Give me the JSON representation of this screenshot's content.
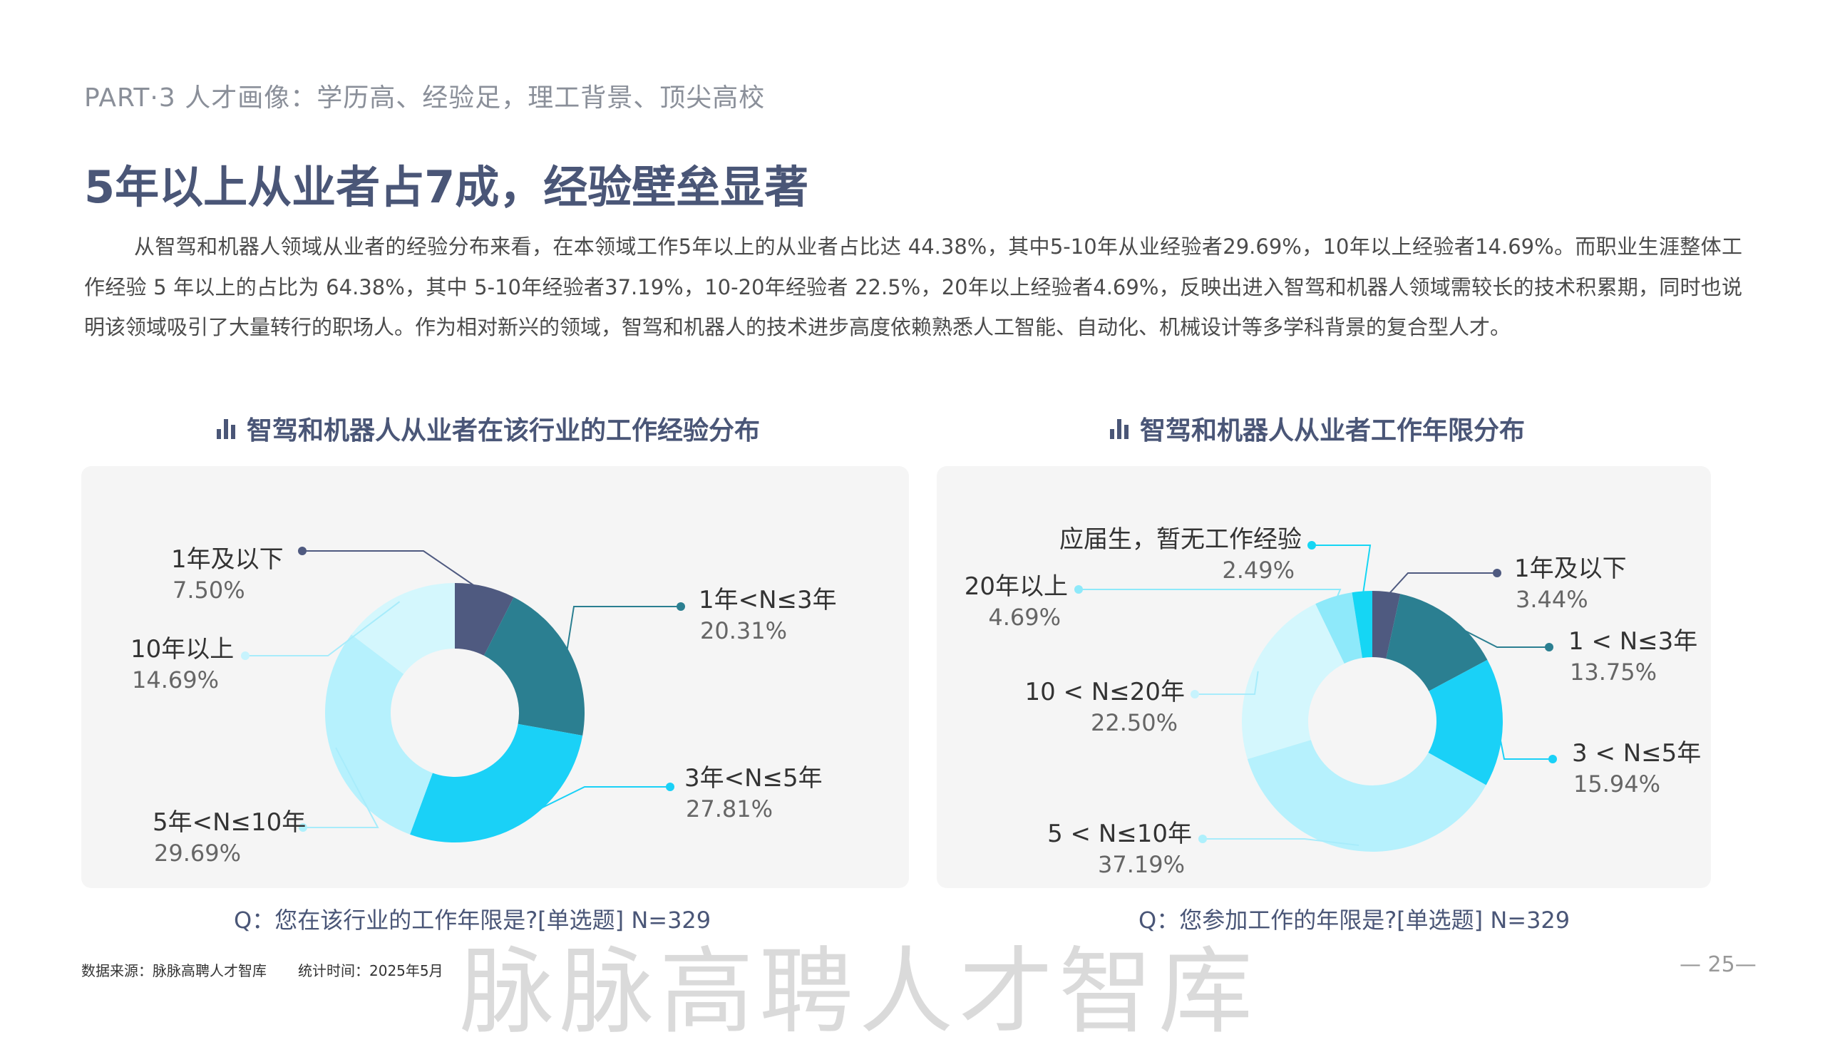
{
  "header": {
    "part_label": "PART·3  人才画像：学历高、经验足，理工背景、顶尖高校",
    "title": "5年以上从业者占7成，经验壁垒显著"
  },
  "body_text": "从智驾和机器人领域从业者的经验分布来看，在本领域工作5年以上的从业者占比达 44.38%，其中5-10年从业经验者29.69%，10年以上经验者14.69%。而职业生涯整体工作经验 5 年以上的占比为 64.38%，其中 5-10年经验者37.19%，10-20年经验者 22.5%，20年以上经验者4.69%，反映出进入智驾和机器人领域需较长的技术积累期，同时也说明该领域吸引了大量转行的职场人。作为相对新兴的领域，智驾和机器人的技术进步高度依赖熟悉人工智能、自动化、机械设计等多学科背景的复合型人才。",
  "chart_data": [
    {
      "type": "pie",
      "donut": true,
      "title": "智驾和机器人从业者在该行业的工作经验分布",
      "question": "Q：您在该行业的工作年限是?[单选题]    N=329",
      "slices": [
        {
          "label": "1年及以下",
          "value_text": "7.50%",
          "value": 7.5,
          "color": "#4f5a80"
        },
        {
          "label": "1年<N≤3年",
          "value_text": "20.31%",
          "value": 20.31,
          "color": "#2b7f91"
        },
        {
          "label": "3年<N≤5年",
          "value_text": "27.81%",
          "value": 27.81,
          "color": "#1ad1f7"
        },
        {
          "label": "5年<N≤10年",
          "value_text": "29.69%",
          "value": 29.69,
          "color": "#b6f1fd"
        },
        {
          "label": "10年以上",
          "value_text": "14.69%",
          "value": 14.69,
          "color": "#d4f7fd"
        }
      ]
    },
    {
      "type": "pie",
      "donut": true,
      "title": "智驾和机器人从业者工作年限分布",
      "question": "Q：您参加工作的年限是?[单选题]    N=329",
      "slices": [
        {
          "label": "1年及以下",
          "value_text": "3.44%",
          "value": 3.44,
          "color": "#4f5a80"
        },
        {
          "label": "1 < N≤3年",
          "value_text": "13.75%",
          "value": 13.75,
          "color": "#2b7f91"
        },
        {
          "label": "3 < N≤5年",
          "value_text": "15.94%",
          "value": 15.94,
          "color": "#1ad1f7"
        },
        {
          "label": "5 < N≤10年",
          "value_text": "37.19%",
          "value": 37.19,
          "color": "#b6f1fd"
        },
        {
          "label": "10 < N≤20年",
          "value_text": "22.50%",
          "value": 22.5,
          "color": "#d4f7fd"
        },
        {
          "label": "20年以上",
          "value_text": "4.69%",
          "value": 4.69,
          "color": "#8ee9fa"
        },
        {
          "label": "应届生，暂无工作经验",
          "value_text": "2.49%",
          "value": 2.49,
          "color": "#15d6f4"
        }
      ]
    }
  ],
  "footer": {
    "source": "数据来源：脉脉高聘人才智库",
    "stat_time": "统计时间：2025年5月",
    "page_number": "— 25—",
    "watermark": "脉脉高聘人才智库"
  }
}
